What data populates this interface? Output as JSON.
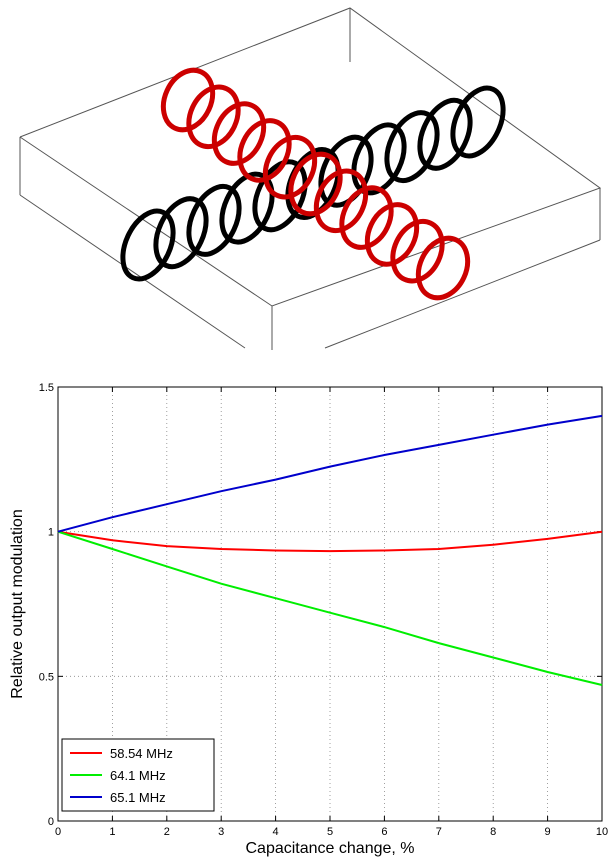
{
  "colors": {
    "coil_black": "#000000",
    "coil_red": "#cc0000",
    "box_edge": "#555555"
  },
  "illustration": {
    "black_coil_rings": 11,
    "red_coil_rings": 11
  },
  "chart_data": {
    "type": "line",
    "title": "",
    "xlabel": "Capacitance change, %",
    "ylabel": "Relative output modulation",
    "xlim": [
      0,
      10
    ],
    "ylim": [
      0,
      1.5
    ],
    "xticks": [
      0,
      1,
      2,
      3,
      4,
      5,
      6,
      7,
      8,
      9,
      10
    ],
    "yticks": [
      0,
      0.5,
      1,
      1.5
    ],
    "xtick_labels": [
      "0",
      "1",
      "2",
      "3",
      "4",
      "5",
      "6",
      "7",
      "8",
      "9",
      "10"
    ],
    "ytick_labels": [
      "0",
      "0.5",
      "1",
      "1.5"
    ],
    "grid": true,
    "legend_position": "bottom-left",
    "series": [
      {
        "name": "58.54 MHz",
        "color": "#ff0000",
        "x": [
          0,
          1,
          2,
          3,
          4,
          5,
          6,
          7,
          8,
          9,
          10
        ],
        "y": [
          1.0,
          0.97,
          0.95,
          0.94,
          0.935,
          0.933,
          0.935,
          0.94,
          0.955,
          0.975,
          1.0
        ]
      },
      {
        "name": "64.1 MHz",
        "color": "#00ee00",
        "x": [
          0,
          1,
          2,
          3,
          4,
          5,
          6,
          7,
          8,
          9,
          10
        ],
        "y": [
          1.0,
          0.94,
          0.88,
          0.82,
          0.77,
          0.72,
          0.67,
          0.615,
          0.565,
          0.515,
          0.47
        ]
      },
      {
        "name": "65.1 MHz",
        "color": "#0000cc",
        "x": [
          0,
          1,
          2,
          3,
          4,
          5,
          6,
          7,
          8,
          9,
          10
        ],
        "y": [
          1.0,
          1.05,
          1.095,
          1.14,
          1.18,
          1.225,
          1.265,
          1.3,
          1.335,
          1.37,
          1.4
        ]
      }
    ]
  }
}
